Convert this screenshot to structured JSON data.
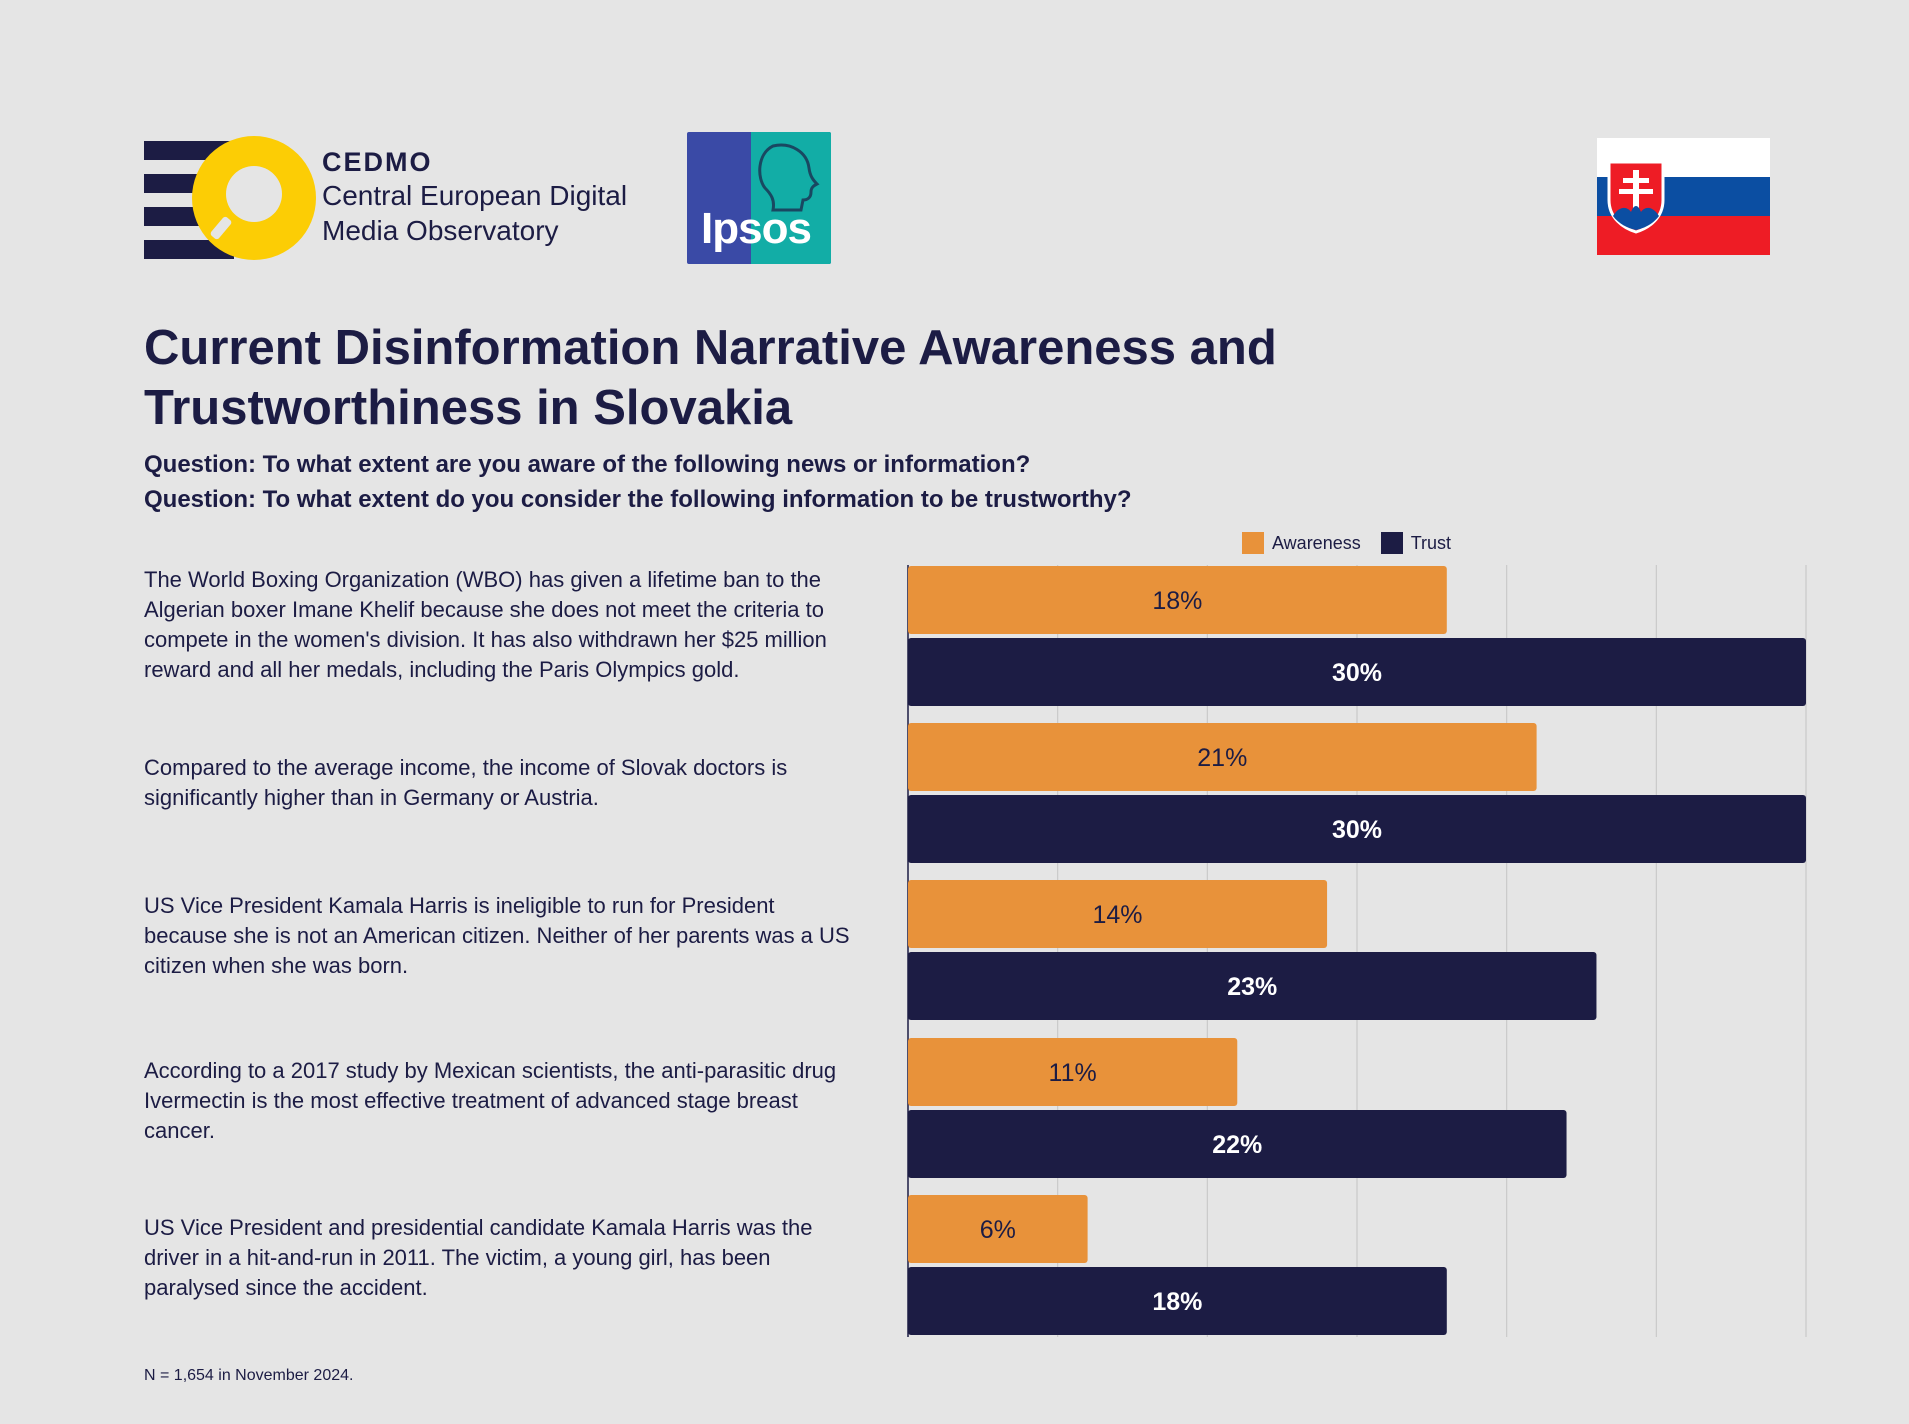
{
  "header": {
    "cedmo_brand": "CEDMO",
    "cedmo_line1": "Central European Digital",
    "cedmo_line2": "Media Observatory",
    "ipsos_word": "Ipsos"
  },
  "title": "Current Disinformation Narrative Awareness and Trustworthiness in Slovakia",
  "questions": [
    "Question: To what extent are you aware of the following news or information?",
    "Question: To what extent do you consider the following information to be trustworthy?"
  ],
  "colors": {
    "awareness": "#e8923a",
    "trust": "#1c1c44",
    "background": "#e5e5e5",
    "flag_white": "#ffffff",
    "flag_blue": "#0b4ea2",
    "flag_red": "#ee1c25"
  },
  "footnote": "N = 1,654 in November 2024.",
  "chart_data": {
    "type": "bar",
    "orientation": "horizontal",
    "categories": [
      "The World Boxing Organization (WBO) has given a lifetime ban to the Algerian boxer Imane Khelif because she does not meet the criteria to compete in the women's division. It has also withdrawn her $25 million reward and all her medals, including the Paris Olympics gold.",
      "Compared to the average income, the income of Slovak doctors is significantly higher than in Germany or Austria.",
      "US Vice President Kamala Harris is ineligible to run for President because she is not an American citizen. Neither of her parents was a US citizen when she was born.",
      "According to a 2017 study by Mexican scientists, the anti-parasitic drug Ivermectin is the most effective treatment of advanced stage breast cancer.",
      "US Vice President and presidential candidate Kamala Harris was the driver in a hit-and-run in 2011. The victim, a young girl, has been paralysed since the accident."
    ],
    "series": [
      {
        "name": "Awareness",
        "values": [
          18,
          21,
          14,
          11,
          6
        ],
        "labels": [
          "18%",
          "21%",
          "14%",
          "11%",
          "6%"
        ]
      },
      {
        "name": "Trust",
        "values": [
          30,
          30,
          23,
          22,
          18
        ],
        "labels": [
          "30%",
          "30%",
          "23%",
          "22%",
          "18%"
        ]
      }
    ],
    "xlim": [
      0,
      30
    ],
    "grid": true,
    "legend": "top-right",
    "unit": "%"
  }
}
